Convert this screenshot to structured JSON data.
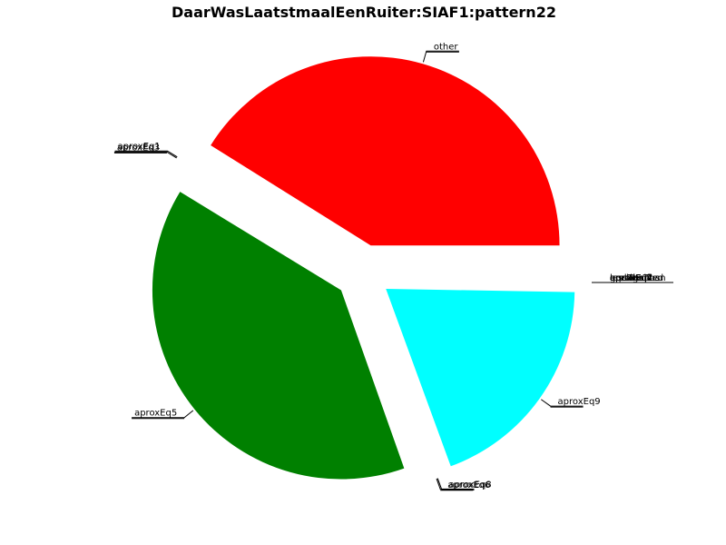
{
  "chart_data": {
    "type": "pie",
    "title": "DaarWasLaatstmaalEenRuiter:SIAF1:pattern22",
    "slices": [
      {
        "label": "other",
        "start_deg": 0,
        "end_deg": 148,
        "color": "#ff0000",
        "exploded": true
      },
      {
        "label": "aproxEq1",
        "start_deg": 148,
        "end_deg": 148.3,
        "color": "#0000ff",
        "exploded": true
      },
      {
        "label": "aproxEq3",
        "start_deg": 148.3,
        "end_deg": 148.6,
        "color": "#bfbf00",
        "exploded": true
      },
      {
        "label": "aproxEq5",
        "start_deg": 148.6,
        "end_deg": 289.5,
        "color": "#008000",
        "exploded": true
      },
      {
        "label": "aproxEq6",
        "start_deg": 289.5,
        "end_deg": 289.8,
        "color": "#bf00bf",
        "exploded": true
      },
      {
        "label": "aproxEq8",
        "start_deg": 289.8,
        "end_deg": 290.1,
        "color": "#00bfbf",
        "exploded": true
      },
      {
        "label": "aproxEq9",
        "start_deg": 290.1,
        "end_deg": 359.0,
        "color": "#00ffff",
        "exploded": true
      }
    ],
    "right_labels": [
      "unclassified",
      "ambiguous",
      "aproxEq2",
      "aproxEq4",
      "aproxEq7",
      "lessThan",
      "greaterThan",
      "equal"
    ]
  }
}
